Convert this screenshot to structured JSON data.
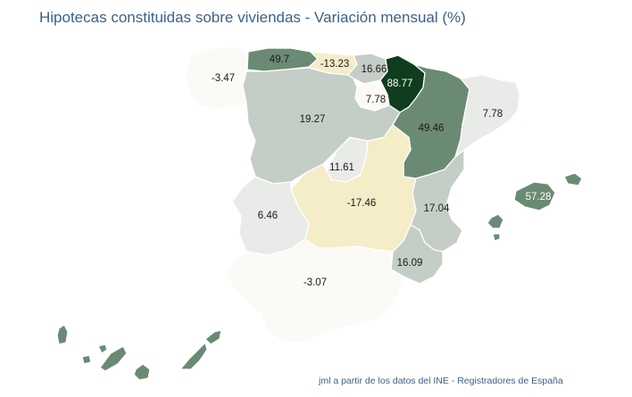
{
  "title": "Hipotecas constituidas sobre viviendas - Variación mensual (%)",
  "credit": "jml a partir de los datos del INE - Registradores de España",
  "colors": {
    "very_light": "#fbfaf6",
    "light_gray": "#e8ebe8",
    "gray": "#c5cdc7",
    "mid_green": "#6b8a73",
    "dark_green": "#0f3d1d",
    "negative_beige": "#f5ecc8",
    "text_dark": "#1a1a1a",
    "text_light": "#ffffff",
    "title": "#3b6189"
  },
  "regions": [
    {
      "name": "Galicia",
      "value": "-3.47",
      "fill": "very_light",
      "text": "text_dark"
    },
    {
      "name": "Asturias",
      "value": "49.7",
      "fill": "mid_green",
      "text": "text_dark"
    },
    {
      "name": "Cantabria",
      "value": "-13.23",
      "fill": "negative_beige",
      "text": "text_dark"
    },
    {
      "name": "País Vasco",
      "value": "16.66",
      "fill": "gray",
      "text": "text_dark"
    },
    {
      "name": "Navarra",
      "value": "88.77",
      "fill": "dark_green",
      "text": "text_light"
    },
    {
      "name": "La Rioja",
      "value": "7.78",
      "fill": "very_light",
      "text": "text_dark"
    },
    {
      "name": "Castilla y León",
      "value": "19.27",
      "fill": "gray",
      "text": "text_dark"
    },
    {
      "name": "Aragón",
      "value": "49.46",
      "fill": "mid_green",
      "text": "text_dark"
    },
    {
      "name": "Cataluña",
      "value": "7.78",
      "fill": "light_gray",
      "text": "text_dark"
    },
    {
      "name": "Madrid",
      "value": "11.61",
      "fill": "light_gray",
      "text": "text_dark"
    },
    {
      "name": "Castilla-La Mancha",
      "value": "-17.46",
      "fill": "negative_beige",
      "text": "text_dark"
    },
    {
      "name": "Extremadura",
      "value": "6.46",
      "fill": "light_gray",
      "text": "text_dark"
    },
    {
      "name": "Comunidad Valenciana",
      "value": "17.04",
      "fill": "gray",
      "text": "text_dark"
    },
    {
      "name": "Murcia",
      "value": "16.09",
      "fill": "gray",
      "text": "text_dark"
    },
    {
      "name": "Andalucía",
      "value": "-3.07",
      "fill": "very_light",
      "text": "text_dark"
    },
    {
      "name": "Baleares",
      "value": "57.28",
      "fill": "mid_green",
      "text": "text_light"
    },
    {
      "name": "Canarias",
      "value": "",
      "fill": "mid_green",
      "text": "text_dark"
    }
  ]
}
